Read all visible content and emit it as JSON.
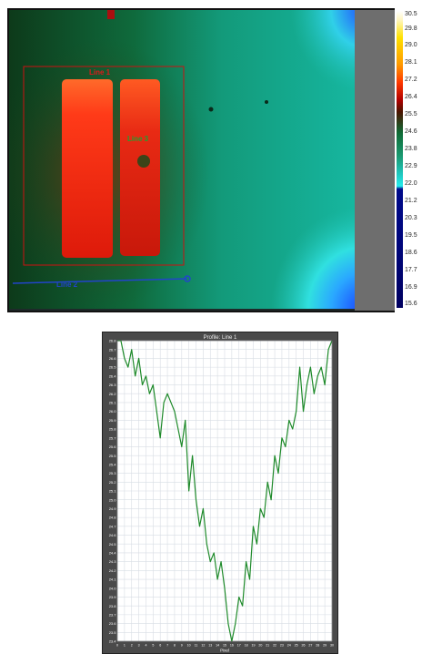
{
  "thermal_view": {
    "lines": [
      {
        "label": "Line 1",
        "color": "#cc1111"
      },
      {
        "label": "Line 2",
        "color": "#2244cc"
      },
      {
        "label": "Line 3",
        "color": "#118822"
      }
    ],
    "colors": {
      "background_teal": "#14a88a",
      "hot_red": "#ff2a10",
      "cold_blue": "#1a55ff",
      "box_red": "#cc1111",
      "line_blue": "#2244cc"
    }
  },
  "temperature_scale": {
    "labels": [
      "30.5",
      "29.8",
      "29.0",
      "28.1",
      "27.2",
      "26.4",
      "25.5",
      "24.6",
      "23.8",
      "22.9",
      "22.0",
      "21.2",
      "20.3",
      "19.5",
      "18.6",
      "17.7",
      "16.9",
      "15.6"
    ]
  },
  "chart_data": {
    "type": "line",
    "title": "Profile: Line 1",
    "xlabel": "Pixel",
    "ylabel": "",
    "x_tick_labels": [
      "0",
      "1",
      "2",
      "3",
      "4",
      "5",
      "6",
      "7",
      "8",
      "9",
      "10",
      "11",
      "12",
      "13",
      "14",
      "15",
      "16",
      "17",
      "18",
      "19",
      "20",
      "21",
      "22",
      "23",
      "24",
      "25",
      "26",
      "27",
      "28",
      "29",
      "30"
    ],
    "y_tick_labels": [
      "26.8",
      "26.7",
      "26.6",
      "26.5",
      "26.4",
      "26.3",
      "26.2",
      "26.1",
      "26.0",
      "25.9",
      "25.8",
      "25.7",
      "25.6",
      "25.5",
      "25.4",
      "25.3",
      "25.2",
      "25.1",
      "25.0",
      "24.9",
      "24.8",
      "24.7",
      "24.6",
      "24.5",
      "24.4",
      "24.3",
      "24.2",
      "24.1",
      "24.0",
      "23.9",
      "23.8",
      "23.7",
      "23.6",
      "23.5",
      "23.4"
    ],
    "ylim": [
      23.4,
      26.8
    ],
    "xlim": [
      0,
      60
    ],
    "grid": true,
    "series_color": "#1e8a2a",
    "series": [
      {
        "x": [
          0,
          1,
          2,
          3,
          4,
          5,
          6,
          7,
          8,
          9,
          10,
          11,
          12,
          13,
          14,
          15,
          16,
          17,
          18,
          19,
          20,
          21,
          22,
          23,
          24,
          25,
          26,
          27,
          28,
          29,
          30,
          31,
          32,
          33,
          34,
          35,
          36,
          37,
          38,
          39,
          40,
          41,
          42,
          43,
          44,
          45,
          46,
          47,
          48,
          49,
          50,
          51,
          52,
          53,
          54,
          55,
          56,
          57,
          58,
          59,
          60
        ],
        "values": [
          26.8,
          26.8,
          26.6,
          26.5,
          26.7,
          26.4,
          26.6,
          26.3,
          26.4,
          26.2,
          26.3,
          26.0,
          25.7,
          26.1,
          26.2,
          26.1,
          26.0,
          25.8,
          25.6,
          25.9,
          25.1,
          25.5,
          25.0,
          24.7,
          24.9,
          24.5,
          24.3,
          24.4,
          24.1,
          24.3,
          24.0,
          23.6,
          23.4,
          23.6,
          23.9,
          23.8,
          24.3,
          24.1,
          24.7,
          24.5,
          24.9,
          24.8,
          25.2,
          25.0,
          25.5,
          25.3,
          25.7,
          25.6,
          25.9,
          25.8,
          26.0,
          26.5,
          26.0,
          26.3,
          26.5,
          26.2,
          26.4,
          26.5,
          26.3,
          26.7,
          26.8
        ]
      }
    ]
  }
}
